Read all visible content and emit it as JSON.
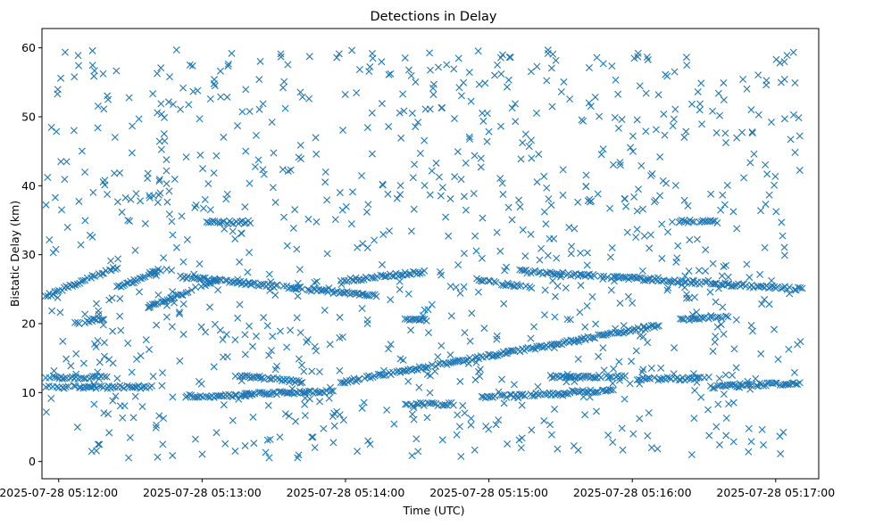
{
  "chart_data": {
    "type": "scatter",
    "title": "Detections in Delay",
    "xlabel": "Time (UTC)",
    "ylabel": "Bistatic Delay (km)",
    "marker": "x",
    "color": "#1f77b4",
    "x_unit": "seconds after 2025-07-28 05:11:00 UTC",
    "xlim": [
      53,
      378
    ],
    "ylim": [
      -2.5,
      62.8
    ],
    "x_ticks": [
      {
        "value": 60,
        "label": "2025-07-28 05:12:00"
      },
      {
        "value": 120,
        "label": "2025-07-28 05:13:00"
      },
      {
        "value": 180,
        "label": "2025-07-28 05:14:00"
      },
      {
        "value": 240,
        "label": "2025-07-28 05:15:00"
      },
      {
        "value": 300,
        "label": "2025-07-28 05:16:00"
      },
      {
        "value": 360,
        "label": "2025-07-28 05:17:00"
      }
    ],
    "y_ticks": [
      0,
      10,
      20,
      30,
      40,
      50,
      60
    ],
    "time_span": [
      54.5,
      370.7
    ],
    "tracks": [
      {
        "from": [
          54.5,
          24.0
        ],
        "to": [
          84.5,
          28.2
        ]
      },
      {
        "from": [
          84.5,
          25.2
        ],
        "to": [
          102.5,
          27.8
        ]
      },
      {
        "from": [
          97.5,
          22.5
        ],
        "to": [
          126,
          26.2
        ]
      },
      {
        "from": [
          111,
          26.8
        ],
        "to": [
          193,
          24.0
        ]
      },
      {
        "from": [
          178,
          26.2
        ],
        "to": [
          213,
          27.5
        ]
      },
      {
        "from": [
          235,
          26.3
        ],
        "to": [
          258,
          25.2
        ]
      },
      {
        "from": [
          253,
          27.6
        ],
        "to": [
          371,
          25.0
        ]
      },
      {
        "from": [
          178,
          11.5
        ],
        "to": [
          311,
          19.7
        ]
      },
      {
        "from": [
          134,
          12.5
        ],
        "to": [
          162,
          11.5
        ]
      },
      {
        "from": [
          54.5,
          10.8
        ],
        "to": [
          99,
          10.8
        ]
      },
      {
        "from": [
          54.5,
          12.2
        ],
        "to": [
          80,
          12.2
        ]
      },
      {
        "from": [
          113,
          9.5
        ],
        "to": [
          140,
          9.5
        ]
      },
      {
        "from": [
          138,
          9.8
        ],
        "to": [
          175,
          10.2
        ]
      },
      {
        "from": [
          205,
          8.3
        ],
        "to": [
          225,
          8.3
        ]
      },
      {
        "from": [
          237,
          9.3
        ],
        "to": [
          270,
          9.9
        ]
      },
      {
        "from": [
          270,
          10.0
        ],
        "to": [
          292,
          10.3
        ]
      },
      {
        "from": [
          265,
          12.3
        ],
        "to": [
          297,
          12.3
        ]
      },
      {
        "from": [
          332,
          10.8
        ],
        "to": [
          370,
          11.4
        ]
      },
      {
        "from": [
          302,
          12.0
        ],
        "to": [
          330,
          12.0
        ]
      },
      {
        "from": [
          67,
          20.0
        ],
        "to": [
          79,
          20.8
        ]
      },
      {
        "from": [
          205,
          20.7
        ],
        "to": [
          214,
          20.6
        ]
      },
      {
        "from": [
          320,
          20.5
        ],
        "to": [
          340,
          21.0
        ]
      },
      {
        "from": [
          122,
          34.7
        ],
        "to": [
          140,
          34.7
        ]
      },
      {
        "from": [
          320,
          34.8
        ],
        "to": [
          337,
          34.8
        ]
      }
    ],
    "noise_points": {
      "count": 1000,
      "x_range": [
        54.5,
        370.7
      ],
      "y_range": [
        0.5,
        59.8
      ],
      "distribution": "uniform"
    }
  }
}
